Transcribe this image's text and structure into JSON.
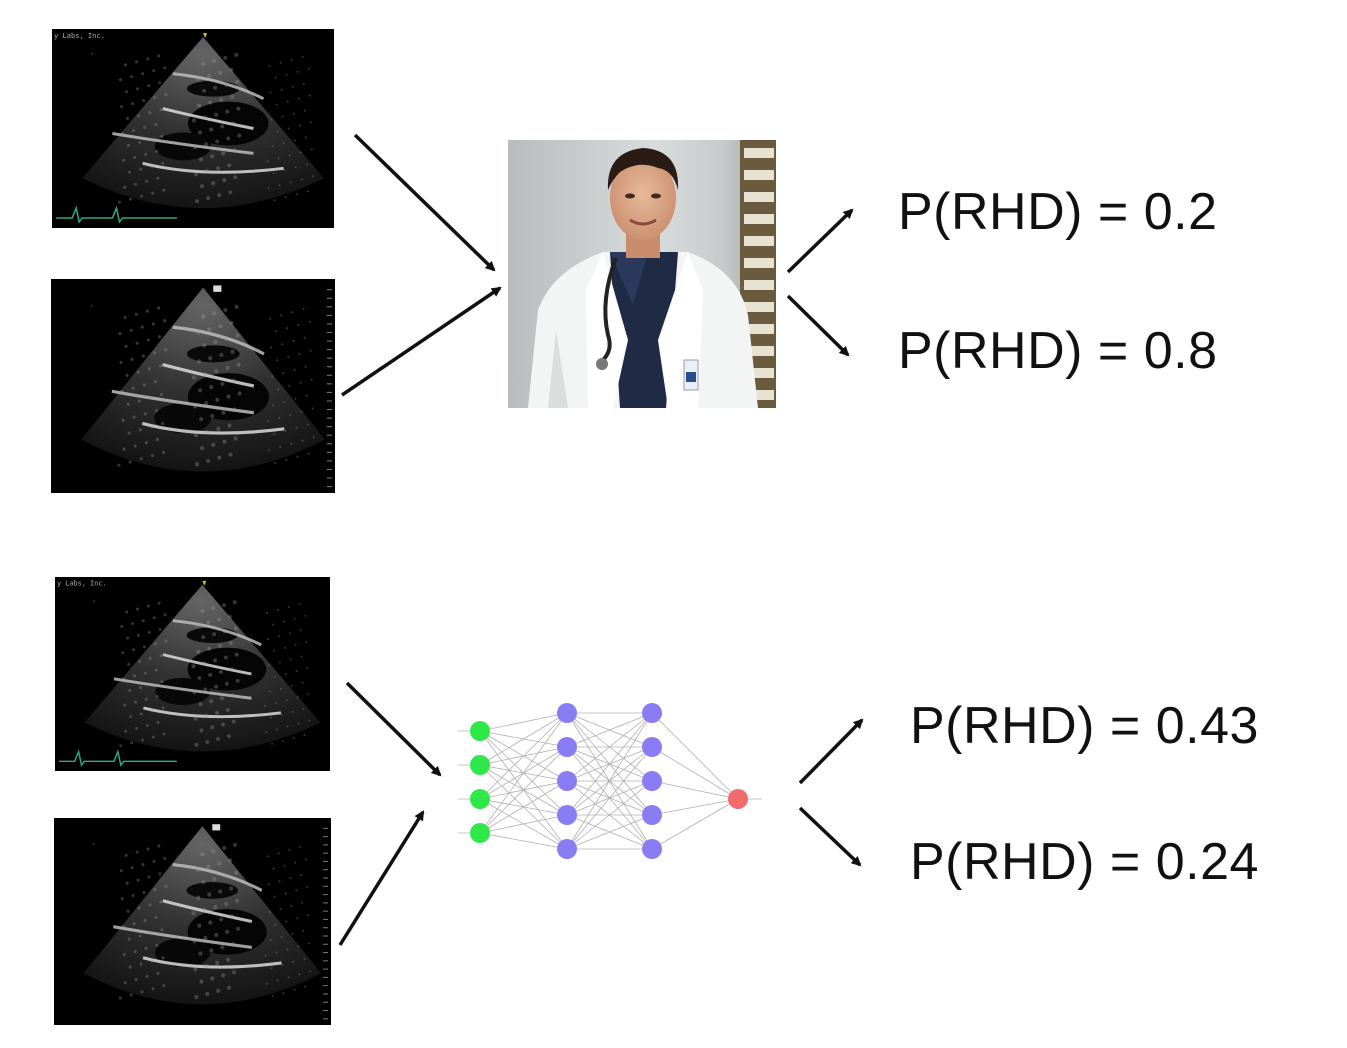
{
  "colors": {
    "input_node": "#2ee84a",
    "hidden_node": "#8a7cf2",
    "output_node": "#f06b6b",
    "edge": "#b0b0b0",
    "arrow": "#111111",
    "ecg_trace": "#2aa88a"
  },
  "top_row": {
    "echo_images": [
      {
        "name": "echo-parasternal-long-axis",
        "caption": "y Labs, Inc."
      },
      {
        "name": "echo-parasternal-long-axis-alt",
        "caption": ""
      }
    ],
    "reader": "doctor-photo",
    "predictions": [
      "P(RHD) = 0.2",
      "P(RHD) = 0.8"
    ]
  },
  "bottom_row": {
    "echo_images": [
      {
        "name": "echo-parasternal-long-axis",
        "caption": "y Labs, Inc."
      },
      {
        "name": "echo-parasternal-long-axis-alt",
        "caption": ""
      }
    ],
    "reader": "neural-network",
    "network_layers": [
      4,
      5,
      5,
      1
    ],
    "predictions": [
      "P(RHD) = 0.43",
      "P(RHD) = 0.24"
    ]
  }
}
